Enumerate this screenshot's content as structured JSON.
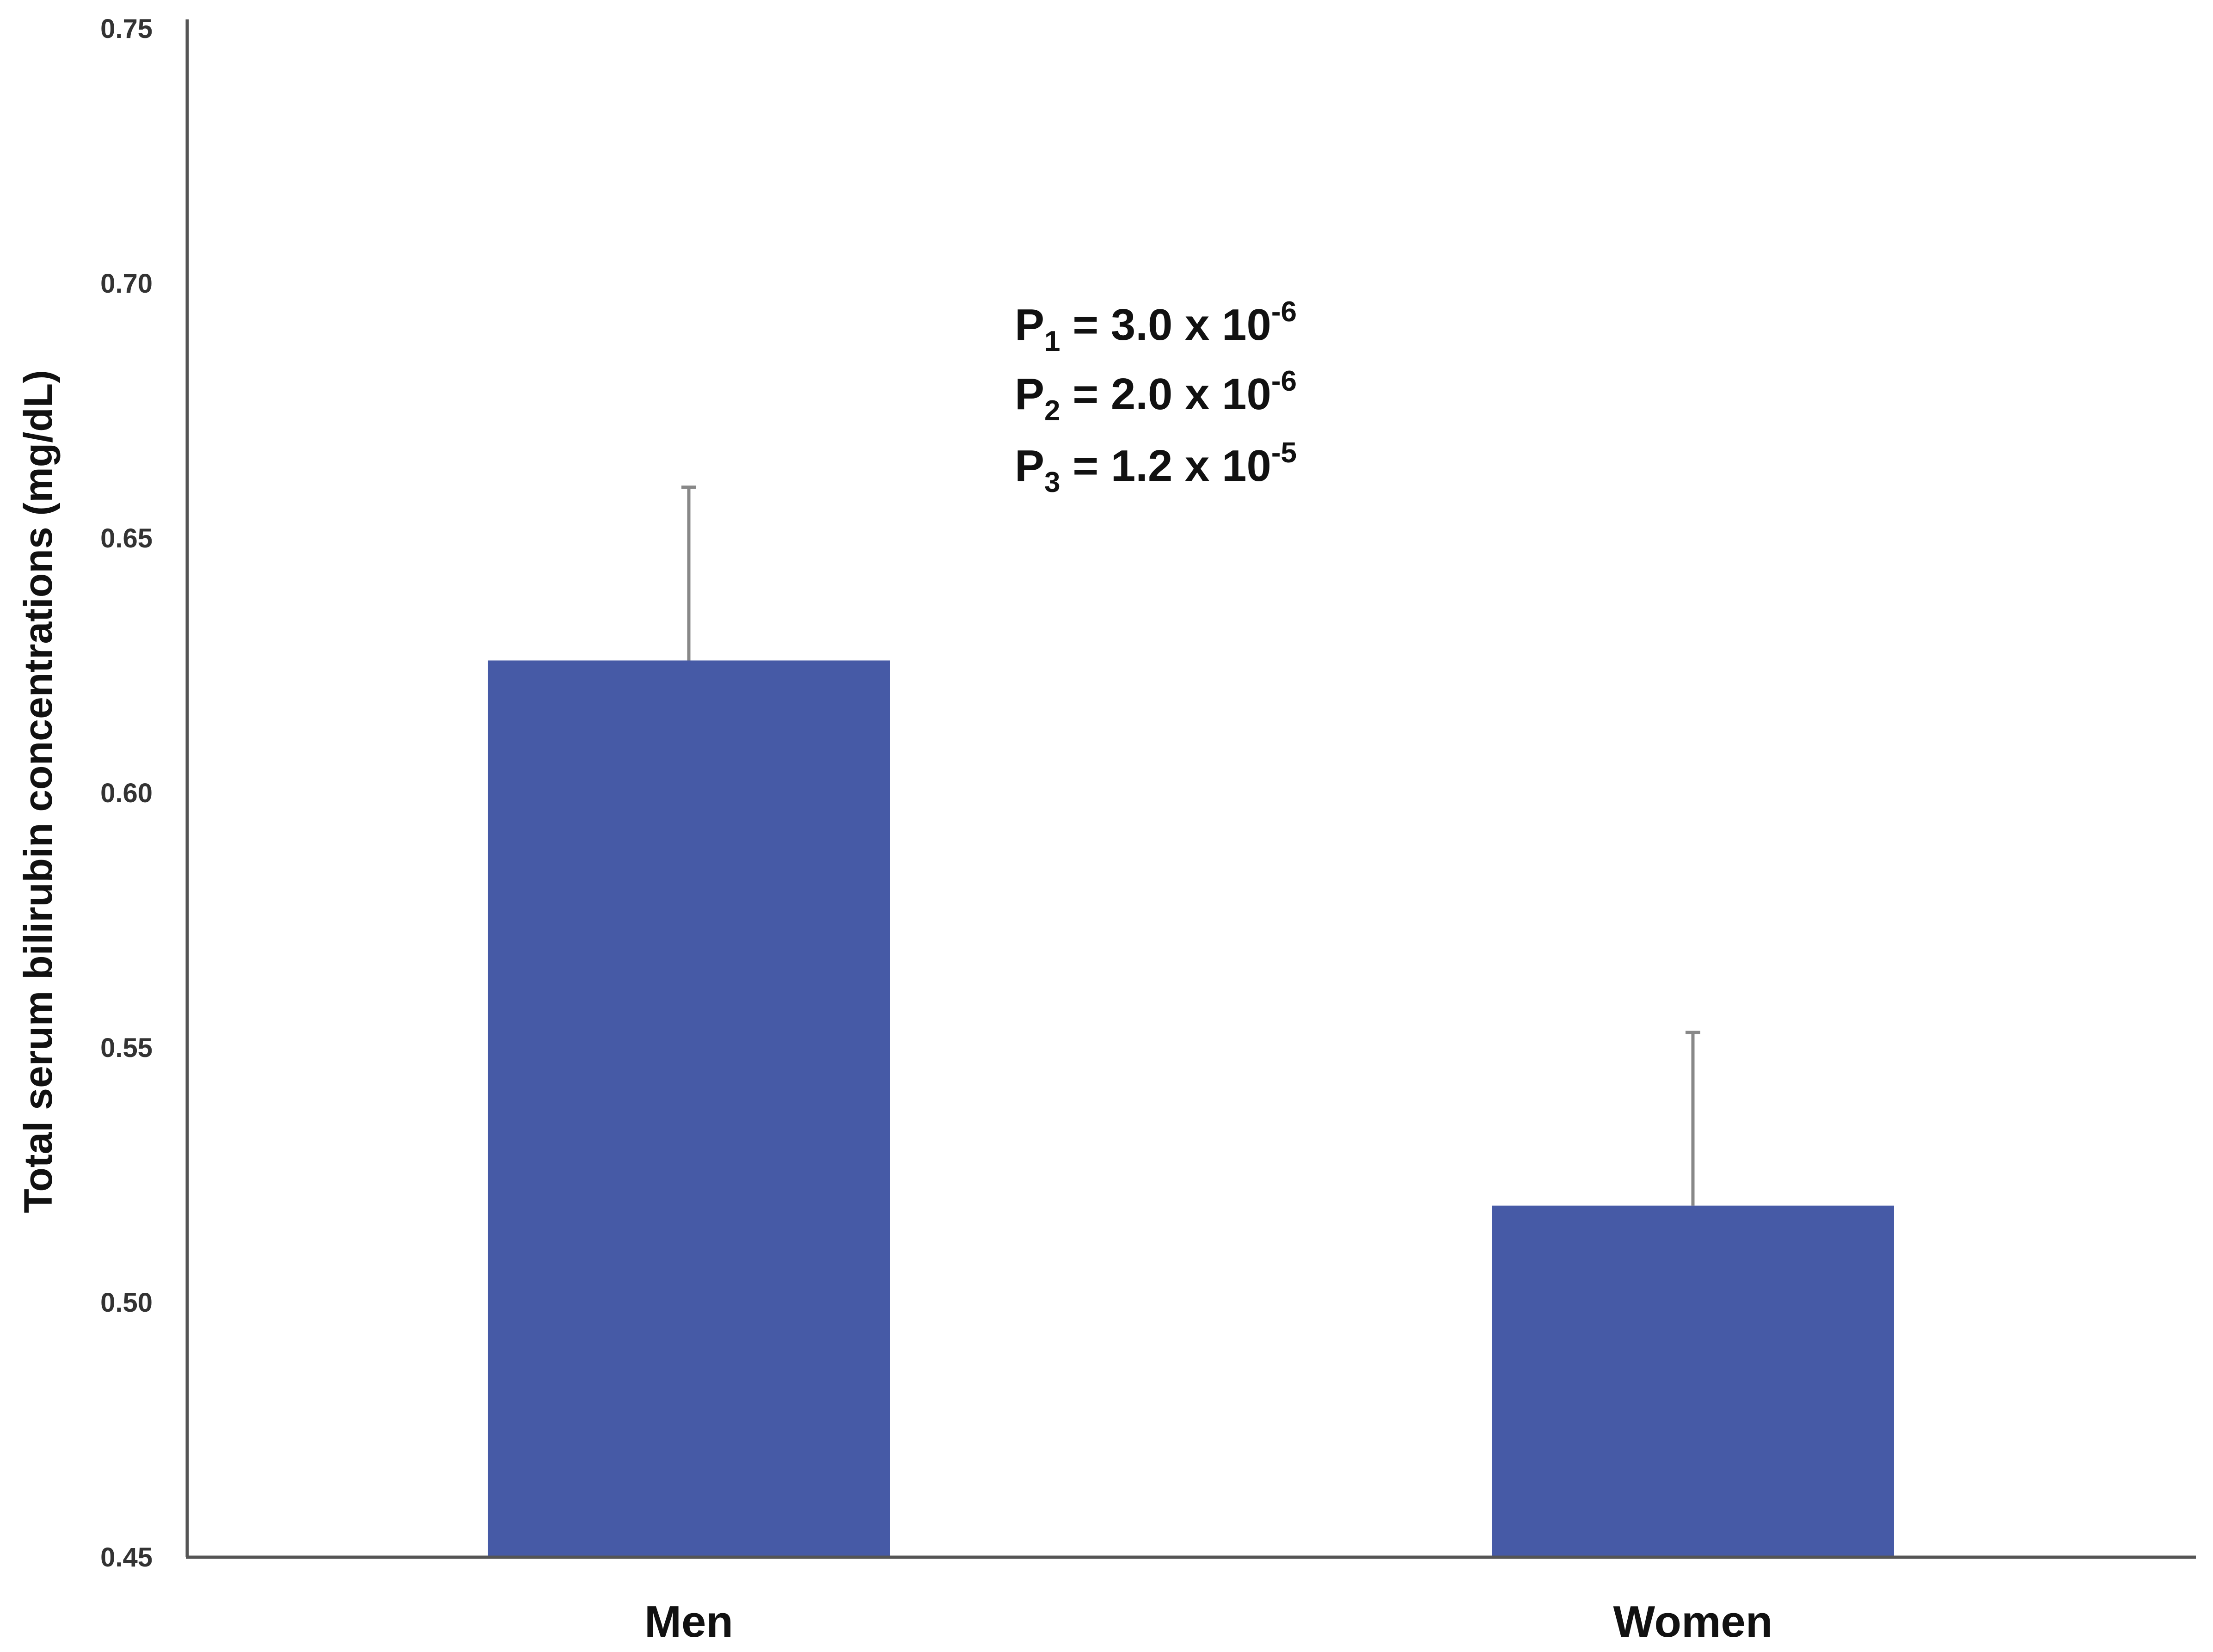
{
  "chart_data": {
    "type": "bar",
    "categories": [
      "Men",
      "Women"
    ],
    "series": [
      {
        "values": [
          0.626,
          0.519
        ],
        "error": [
          0.034,
          0.034
        ]
      }
    ],
    "ylabel": "Total serum bilirubin concentrations (mg/dL)",
    "xlabel": "",
    "ylim": [
      0.45,
      0.75
    ],
    "yticks": [
      "0.45",
      "0.50",
      "0.55",
      "0.60",
      "0.65",
      "0.70",
      "0.75"
    ],
    "grid": false,
    "bar_color": "#465aa6",
    "error_bar_color": "#888888",
    "annotations": [
      {
        "sym": "P",
        "sub": "1",
        "text": " = 3.0 x 10",
        "sup": "-6"
      },
      {
        "sym": "P",
        "sub": "2",
        "text": " = 2.0 x 10",
        "sup": "-6"
      },
      {
        "sym": "P",
        "sub": "3",
        "text": " = 1.2 x 10",
        "sup": "-5"
      }
    ]
  }
}
